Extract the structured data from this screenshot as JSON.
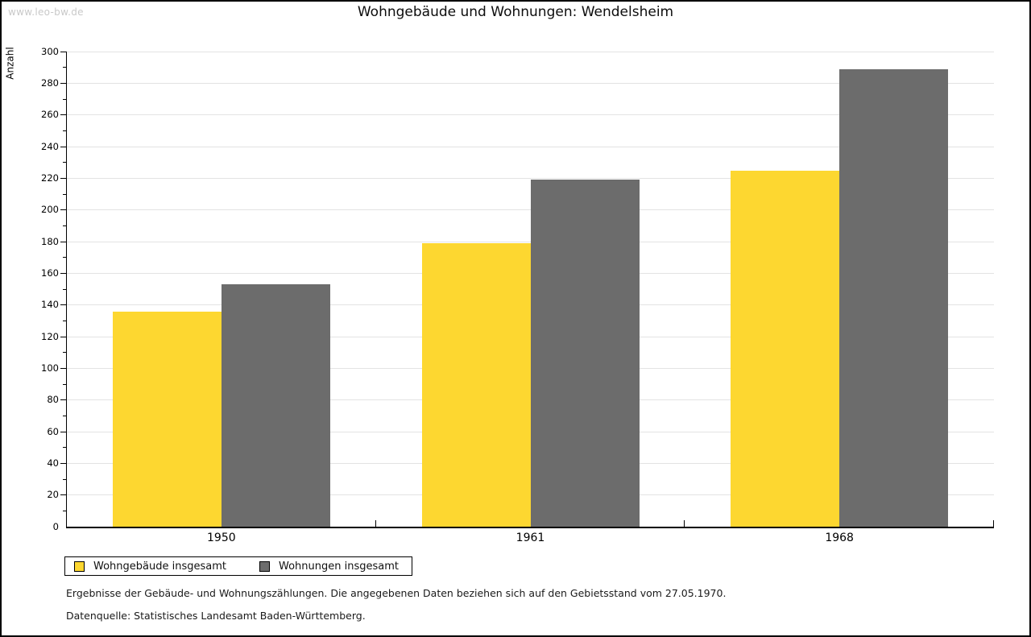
{
  "watermark": "www.leo-bw.de",
  "chart_data": {
    "type": "bar",
    "title": "Wohngebäude und Wohnungen: Wendelsheim",
    "ylabel": "Anzahl",
    "xlabel": "",
    "ylim": [
      0,
      300
    ],
    "ytick_step": 20,
    "ytick_minor_step": 10,
    "grid": true,
    "legend_position": "bottom-left",
    "categories": [
      "1950",
      "1961",
      "1968"
    ],
    "series": [
      {
        "name": "Wohngebäude insgesamt",
        "color": "#FDD730",
        "values": [
          136,
          179,
          225
        ]
      },
      {
        "name": "Wohnungen insgesamt",
        "color": "#6C6C6C",
        "values": [
          153,
          219,
          289
        ]
      }
    ]
  },
  "footnotes": [
    "Ergebnisse der Gebäude- und Wohnungszählungen. Die angegebenen Daten beziehen sich auf den Gebietsstand vom 27.05.1970.",
    "Datenquelle: Statistisches Landesamt Baden-Württemberg."
  ]
}
